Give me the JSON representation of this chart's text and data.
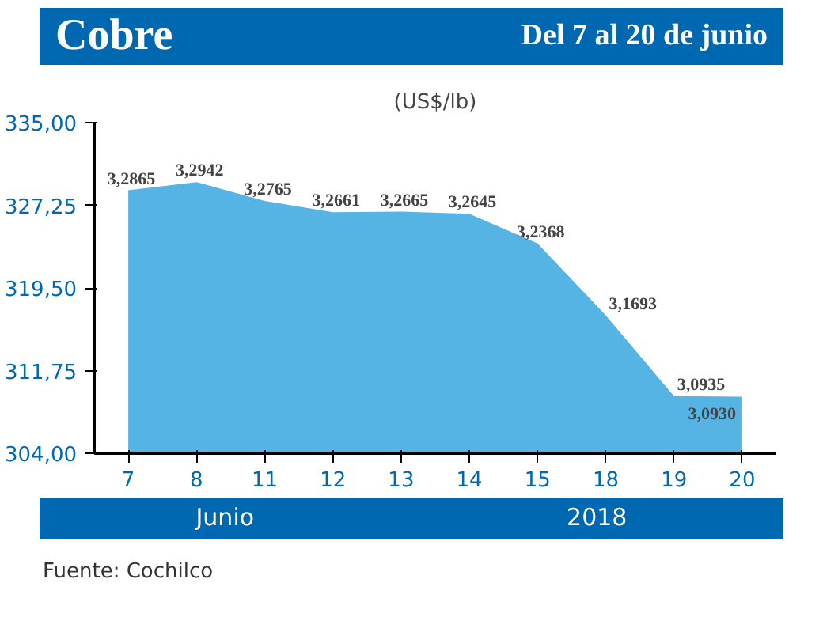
{
  "chart_data": {
    "type": "area",
    "title": "Cobre",
    "subtitle": "Del 7 al 20 de junio",
    "ylabel": "(US$/lb)",
    "categories": [
      "7",
      "8",
      "11",
      "12",
      "13",
      "14",
      "15",
      "18",
      "19",
      "20"
    ],
    "values": [
      328.65,
      329.42,
      327.65,
      326.61,
      326.65,
      326.45,
      323.68,
      316.93,
      309.35,
      309.3
    ],
    "value_labels": [
      "3,2865",
      "3,2942",
      "3,2765",
      "3,2661",
      "3,2665",
      "3,2645",
      "3,2368",
      "3,1693",
      "3,0935",
      "3,0930"
    ],
    "color": "#56b4e4",
    "ylim": [
      304,
      335
    ],
    "yticks": [
      {
        "value": 304,
        "label": "304,00"
      },
      {
        "value": 311.75,
        "label": "311,75"
      },
      {
        "value": 319.5,
        "label": "319,50"
      },
      {
        "value": 327.25,
        "label": "327,25"
      },
      {
        "value": 335,
        "label": "335,00"
      }
    ],
    "grid": false,
    "annotations": [
      "Junio",
      "2018",
      "Fuente: Cochilco"
    ]
  }
}
